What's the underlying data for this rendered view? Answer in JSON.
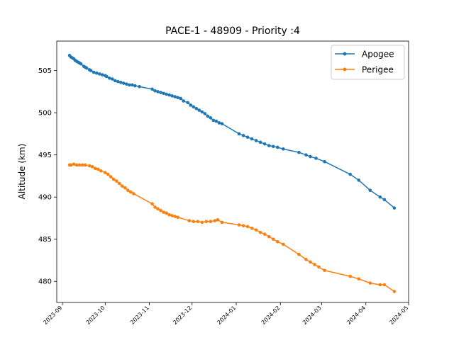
{
  "chart_data": {
    "type": "line",
    "title": "PACE-1 - 48909 - Priority :4",
    "xlabel": "",
    "ylabel": "Altitude (km)",
    "x_type": "date",
    "xlim": [
      "2023-08-28",
      "2024-05-01"
    ],
    "ylim": [
      477.5,
      508.5
    ],
    "x_ticks": [
      "2023-09",
      "2023-10",
      "2023-11",
      "2023-12",
      "2024-01",
      "2024-02",
      "2024-03",
      "2024-04",
      "2024-05"
    ],
    "y_ticks": [
      480,
      485,
      490,
      495,
      500,
      505
    ],
    "grid": false,
    "legend_position": "top-right",
    "series": [
      {
        "name": "Apogee",
        "color": "#1f77b4",
        "marker": "circle",
        "points": [
          [
            "2023-09-06",
            506.8
          ],
          [
            "2023-09-07",
            506.6
          ],
          [
            "2023-09-08",
            506.5
          ],
          [
            "2023-09-09",
            506.4
          ],
          [
            "2023-09-10",
            506.2
          ],
          [
            "2023-09-11",
            506.1
          ],
          [
            "2023-09-12",
            506.0
          ],
          [
            "2023-09-13",
            505.9
          ],
          [
            "2023-09-14",
            505.8
          ],
          [
            "2023-09-16",
            505.5
          ],
          [
            "2023-09-17",
            505.4
          ],
          [
            "2023-09-18",
            505.3
          ],
          [
            "2023-09-20",
            505.1
          ],
          [
            "2023-09-21",
            505.0
          ],
          [
            "2023-09-23",
            504.8
          ],
          [
            "2023-09-25",
            504.7
          ],
          [
            "2023-09-27",
            504.6
          ],
          [
            "2023-09-29",
            504.5
          ],
          [
            "2023-10-01",
            504.4
          ],
          [
            "2023-10-02",
            504.3
          ],
          [
            "2023-10-04",
            504.1
          ],
          [
            "2023-10-06",
            504.0
          ],
          [
            "2023-10-08",
            503.8
          ],
          [
            "2023-10-10",
            503.7
          ],
          [
            "2023-10-12",
            503.6
          ],
          [
            "2023-10-14",
            503.5
          ],
          [
            "2023-10-16",
            503.4
          ],
          [
            "2023-10-18",
            503.3
          ],
          [
            "2023-10-20",
            503.3
          ],
          [
            "2023-10-22",
            503.2
          ],
          [
            "2023-10-25",
            503.1
          ],
          [
            "2023-11-03",
            502.8
          ],
          [
            "2023-11-05",
            502.6
          ],
          [
            "2023-11-07",
            502.5
          ],
          [
            "2023-11-09",
            502.4
          ],
          [
            "2023-11-11",
            502.3
          ],
          [
            "2023-11-13",
            502.2
          ],
          [
            "2023-11-15",
            502.1
          ],
          [
            "2023-11-17",
            502.0
          ],
          [
            "2023-11-19",
            501.9
          ],
          [
            "2023-11-21",
            501.8
          ],
          [
            "2023-11-23",
            501.7
          ],
          [
            "2023-11-25",
            501.4
          ],
          [
            "2023-11-28",
            501.2
          ],
          [
            "2023-11-30",
            500.9
          ],
          [
            "2023-12-02",
            500.7
          ],
          [
            "2023-12-04",
            500.5
          ],
          [
            "2023-12-06",
            500.3
          ],
          [
            "2023-12-08",
            500.1
          ],
          [
            "2023-12-10",
            499.9
          ],
          [
            "2023-12-12",
            499.6
          ],
          [
            "2023-12-14",
            499.4
          ],
          [
            "2023-12-16",
            499.1
          ],
          [
            "2023-12-18",
            499.0
          ],
          [
            "2023-12-20",
            498.8
          ],
          [
            "2023-12-22",
            498.7
          ],
          [
            "2024-01-03",
            497.5
          ],
          [
            "2024-01-06",
            497.3
          ],
          [
            "2024-01-09",
            497.1
          ],
          [
            "2024-01-12",
            496.9
          ],
          [
            "2024-01-15",
            496.7
          ],
          [
            "2024-01-18",
            496.5
          ],
          [
            "2024-01-21",
            496.3
          ],
          [
            "2024-01-24",
            496.1
          ],
          [
            "2024-01-27",
            496.0
          ],
          [
            "2024-01-30",
            495.9
          ],
          [
            "2024-02-03",
            495.7
          ],
          [
            "2024-02-14",
            495.3
          ],
          [
            "2024-02-19",
            495.0
          ],
          [
            "2024-02-22",
            494.8
          ],
          [
            "2024-02-26",
            494.6
          ],
          [
            "2024-03-03",
            494.2
          ],
          [
            "2024-03-21",
            492.7
          ],
          [
            "2024-03-27",
            492.0
          ],
          [
            "2024-04-04",
            490.8
          ],
          [
            "2024-04-11",
            490.0
          ],
          [
            "2024-04-14",
            489.7
          ],
          [
            "2024-04-21",
            488.7
          ]
        ]
      },
      {
        "name": "Perigee",
        "color": "#ff7f0e",
        "marker": "circle",
        "points": [
          [
            "2023-09-06",
            493.8
          ],
          [
            "2023-09-07",
            493.8
          ],
          [
            "2023-09-09",
            493.9
          ],
          [
            "2023-09-11",
            493.8
          ],
          [
            "2023-09-13",
            493.8
          ],
          [
            "2023-09-15",
            493.8
          ],
          [
            "2023-09-17",
            493.8
          ],
          [
            "2023-09-20",
            493.7
          ],
          [
            "2023-09-22",
            493.6
          ],
          [
            "2023-09-24",
            493.4
          ],
          [
            "2023-09-26",
            493.3
          ],
          [
            "2023-09-28",
            493.1
          ],
          [
            "2023-10-01",
            492.9
          ],
          [
            "2023-10-03",
            492.7
          ],
          [
            "2023-10-05",
            492.4
          ],
          [
            "2023-10-07",
            492.1
          ],
          [
            "2023-10-09",
            491.9
          ],
          [
            "2023-10-11",
            491.6
          ],
          [
            "2023-10-13",
            491.3
          ],
          [
            "2023-10-15",
            491.1
          ],
          [
            "2023-10-17",
            490.8
          ],
          [
            "2023-10-19",
            490.6
          ],
          [
            "2023-10-21",
            490.4
          ],
          [
            "2023-11-03",
            489.2
          ],
          [
            "2023-11-05",
            488.8
          ],
          [
            "2023-11-07",
            488.6
          ],
          [
            "2023-11-09",
            488.4
          ],
          [
            "2023-11-11",
            488.2
          ],
          [
            "2023-11-13",
            488.1
          ],
          [
            "2023-11-15",
            487.9
          ],
          [
            "2023-11-17",
            487.8
          ],
          [
            "2023-11-19",
            487.7
          ],
          [
            "2023-11-21",
            487.6
          ],
          [
            "2023-11-29",
            487.2
          ],
          [
            "2023-12-02",
            487.1
          ],
          [
            "2023-12-05",
            487.1
          ],
          [
            "2023-12-08",
            487.0
          ],
          [
            "2023-12-11",
            487.1
          ],
          [
            "2023-12-14",
            487.1
          ],
          [
            "2023-12-17",
            487.2
          ],
          [
            "2023-12-19",
            487.3
          ],
          [
            "2023-12-22",
            487.0
          ],
          [
            "2024-01-03",
            486.7
          ],
          [
            "2024-01-06",
            486.6
          ],
          [
            "2024-01-09",
            486.5
          ],
          [
            "2024-01-12",
            486.3
          ],
          [
            "2024-01-15",
            486.1
          ],
          [
            "2024-01-18",
            485.8
          ],
          [
            "2024-01-21",
            485.6
          ],
          [
            "2024-01-24",
            485.3
          ],
          [
            "2024-01-27",
            485.0
          ],
          [
            "2024-01-30",
            484.7
          ],
          [
            "2024-02-03",
            484.4
          ],
          [
            "2024-02-14",
            483.2
          ],
          [
            "2024-02-19",
            482.6
          ],
          [
            "2024-02-22",
            482.3
          ],
          [
            "2024-02-25",
            482.0
          ],
          [
            "2024-02-28",
            481.7
          ],
          [
            "2024-03-03",
            481.3
          ],
          [
            "2024-03-21",
            480.6
          ],
          [
            "2024-03-27",
            480.3
          ],
          [
            "2024-04-04",
            479.8
          ],
          [
            "2024-04-11",
            479.6
          ],
          [
            "2024-04-14",
            479.6
          ],
          [
            "2024-04-21",
            478.8
          ]
        ]
      }
    ]
  }
}
